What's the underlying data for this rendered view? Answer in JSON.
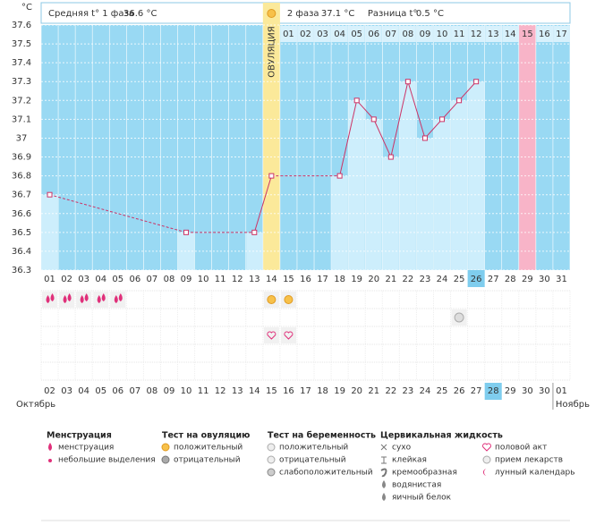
{
  "chart_data": {
    "type": "line",
    "y_unit": "°C",
    "header": {
      "phase1_label": "Средняя t° 1 фаза",
      "phase1_value": "36.6 °C",
      "phase2_label": "2 фаза",
      "phase2_value": "37.1 °C",
      "diff_label": "Разница t°",
      "diff_value": "0.5 °C"
    },
    "ovulation_label": "ОВУЛЯЦИЯ",
    "categories": [
      "01",
      "02",
      "03",
      "04",
      "05",
      "06",
      "07",
      "08",
      "09",
      "10",
      "11",
      "12",
      "13",
      "14",
      "15",
      "16",
      "17",
      "18",
      "19",
      "20",
      "21",
      "22",
      "23",
      "24",
      "25",
      "26",
      "27",
      "28",
      "29",
      "30",
      "31"
    ],
    "values": [
      36.7,
      null,
      null,
      null,
      null,
      null,
      null,
      null,
      36.5,
      null,
      null,
      null,
      36.5,
      36.8,
      null,
      null,
      null,
      36.8,
      37.2,
      37.1,
      36.9,
      37.3,
      37.0,
      37.1,
      37.2,
      37.3,
      null,
      null,
      null,
      null,
      null
    ],
    "phase2_days": [
      "01",
      "02",
      "03",
      "04",
      "05",
      "06",
      "07",
      "08",
      "09",
      "10",
      "11",
      "12",
      "13",
      "14",
      "15",
      "16",
      "17"
    ],
    "dates": [
      "02",
      "03",
      "04",
      "05",
      "06",
      "07",
      "08",
      "09",
      "10",
      "11",
      "12",
      "13",
      "14",
      "15",
      "16",
      "17",
      "18",
      "19",
      "20",
      "21",
      "22",
      "23",
      "24",
      "25",
      "26",
      "27",
      "28",
      "29",
      "30",
      "30",
      "01"
    ],
    "months": [
      "Октябрь",
      "Ноябрь"
    ],
    "weekends": [
      3,
      4,
      10,
      11,
      17,
      18,
      24
    ],
    "today_index": 25,
    "ovulation_index": 13,
    "phase2_start_index": 14,
    "pink_index": 28,
    "color": "#cc3366",
    "ylim": [
      36.3,
      37.6
    ],
    "yticks": [
      36.3,
      36.4,
      36.5,
      36.6,
      36.7,
      36.8,
      36.9,
      37,
      37.1,
      37.2,
      37.3,
      37.4,
      37.5,
      37.6
    ],
    "grid": true,
    "events": {
      "menstruation": [
        0,
        1,
        2,
        3,
        4
      ],
      "ovulation_test": [
        13,
        14
      ],
      "pregnancy_test": [
        24
      ],
      "intercourse": [
        13,
        14
      ]
    },
    "legend": [
      {
        "title": "Менструация",
        "items": [
          "менструация",
          "небольшие выделения"
        ]
      },
      {
        "title": "Тест на овуляцию",
        "items": [
          "положительный",
          "отрицательный"
        ]
      },
      {
        "title": "Тест на беременность",
        "items": [
          "положительный",
          "отрицательный",
          "слабоположительный"
        ]
      },
      {
        "title": "Цервикальная жидкость",
        "items": [
          "сухо",
          "клейкая",
          "кремообразная",
          "водянистая",
          "яичный белок"
        ]
      },
      {
        "items": [
          "половой акт",
          "прием лекарств",
          "лунный календарь"
        ]
      }
    ]
  }
}
